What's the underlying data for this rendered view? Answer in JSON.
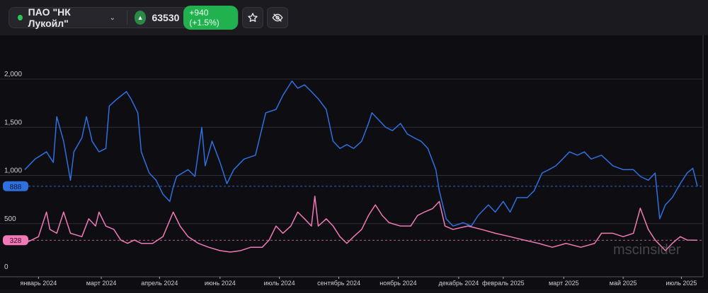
{
  "header": {
    "ticker": "ПАО \"НК Лукойл\"",
    "price": "63530",
    "change": "+940 (+1.5%)",
    "icons": [
      "status-dot",
      "chevron-down-icon",
      "triangle-up-icon",
      "star-icon",
      "eye-off-icon"
    ]
  },
  "watermark": "mscinsider",
  "chart_data": {
    "type": "line",
    "title": "",
    "xlabel": "",
    "ylabel": "",
    "x_unit": "days since mid-December 2023",
    "ylim": [
      0,
      2000
    ],
    "yticks": [
      {
        "v": 0,
        "label": "0"
      },
      {
        "v": 500,
        "label": "500"
      },
      {
        "v": 1000,
        "label": "1,000"
      },
      {
        "v": 1500,
        "label": "1,500"
      },
      {
        "v": 2000,
        "label": "2,000"
      }
    ],
    "xticks": [
      {
        "d": 12,
        "label": "январь 2024"
      },
      {
        "d": 67,
        "label": "март 2024"
      },
      {
        "d": 118,
        "label": "апрель 2024"
      },
      {
        "d": 171,
        "label": "июнь 2024"
      },
      {
        "d": 223,
        "label": "июль 2024"
      },
      {
        "d": 275,
        "label": "сентябрь 2024"
      },
      {
        "d": 327,
        "label": "ноябрь 2024"
      },
      {
        "d": 380,
        "label": "декабрь 2024"
      },
      {
        "d": 419,
        "label": "февраль 2025"
      },
      {
        "d": 472,
        "label": "март 2025"
      },
      {
        "d": 524,
        "label": "май 2025"
      },
      {
        "d": 575,
        "label": "июль 2025"
      }
    ],
    "grid": true,
    "series": [
      {
        "name": "blue",
        "color": "#2f6fe0",
        "last_label": "888",
        "last": 888,
        "points": [
          [
            0,
            1060
          ],
          [
            9,
            1170
          ],
          [
            19,
            1245
          ],
          [
            25,
            1135
          ],
          [
            28,
            1610
          ],
          [
            34,
            1355
          ],
          [
            40,
            950
          ],
          [
            43,
            1245
          ],
          [
            50,
            1390
          ],
          [
            54,
            1610
          ],
          [
            59,
            1355
          ],
          [
            65,
            1245
          ],
          [
            71,
            1280
          ],
          [
            74,
            1720
          ],
          [
            81,
            1795
          ],
          [
            89,
            1870
          ],
          [
            93,
            1795
          ],
          [
            99,
            1650
          ],
          [
            102,
            1245
          ],
          [
            109,
            1025
          ],
          [
            115,
            950
          ],
          [
            121,
            805
          ],
          [
            127,
            730
          ],
          [
            130,
            880
          ],
          [
            133,
            990
          ],
          [
            143,
            1060
          ],
          [
            149,
            990
          ],
          [
            155,
            1500
          ],
          [
            158,
            1100
          ],
          [
            164,
            1355
          ],
          [
            171,
            1135
          ],
          [
            177,
            915
          ],
          [
            183,
            1060
          ],
          [
            192,
            1170
          ],
          [
            202,
            1210
          ],
          [
            211,
            1650
          ],
          [
            220,
            1685
          ],
          [
            226,
            1830
          ],
          [
            234,
            1980
          ],
          [
            239,
            1905
          ],
          [
            245,
            1940
          ],
          [
            251,
            1870
          ],
          [
            257,
            1795
          ],
          [
            264,
            1685
          ],
          [
            270,
            1355
          ],
          [
            276,
            1280
          ],
          [
            282,
            1320
          ],
          [
            288,
            1280
          ],
          [
            295,
            1355
          ],
          [
            301,
            1540
          ],
          [
            304,
            1650
          ],
          [
            310,
            1575
          ],
          [
            316,
            1500
          ],
          [
            322,
            1465
          ],
          [
            329,
            1540
          ],
          [
            335,
            1430
          ],
          [
            341,
            1390
          ],
          [
            347,
            1355
          ],
          [
            353,
            1280
          ],
          [
            360,
            1060
          ],
          [
            363,
            840
          ],
          [
            369,
            550
          ],
          [
            375,
            475
          ],
          [
            384,
            510
          ],
          [
            391,
            475
          ],
          [
            397,
            585
          ],
          [
            406,
            695
          ],
          [
            412,
            620
          ],
          [
            419,
            730
          ],
          [
            425,
            620
          ],
          [
            431,
            770
          ],
          [
            440,
            770
          ],
          [
            446,
            840
          ],
          [
            453,
            1025
          ],
          [
            459,
            1060
          ],
          [
            465,
            1100
          ],
          [
            471,
            1170
          ],
          [
            477,
            1245
          ],
          [
            484,
            1210
          ],
          [
            490,
            1245
          ],
          [
            496,
            1170
          ],
          [
            505,
            1210
          ],
          [
            515,
            1100
          ],
          [
            524,
            1060
          ],
          [
            533,
            1060
          ],
          [
            539,
            990
          ],
          [
            546,
            950
          ],
          [
            552,
            1025
          ],
          [
            556,
            550
          ],
          [
            561,
            695
          ],
          [
            567,
            770
          ],
          [
            574,
            915
          ],
          [
            580,
            1025
          ],
          [
            585,
            1075
          ],
          [
            589,
            888
          ]
        ]
      },
      {
        "name": "pink",
        "color": "#f07ab8",
        "last_label": "328",
        "last": 328,
        "points": [
          [
            0,
            295
          ],
          [
            6,
            330
          ],
          [
            12,
            365
          ],
          [
            19,
            620
          ],
          [
            22,
            440
          ],
          [
            28,
            400
          ],
          [
            34,
            620
          ],
          [
            40,
            400
          ],
          [
            50,
            365
          ],
          [
            56,
            550
          ],
          [
            62,
            475
          ],
          [
            65,
            620
          ],
          [
            71,
            475
          ],
          [
            78,
            440
          ],
          [
            84,
            330
          ],
          [
            90,
            295
          ],
          [
            96,
            330
          ],
          [
            102,
            295
          ],
          [
            112,
            295
          ],
          [
            121,
            365
          ],
          [
            130,
            620
          ],
          [
            136,
            475
          ],
          [
            143,
            365
          ],
          [
            152,
            295
          ],
          [
            161,
            255
          ],
          [
            171,
            220
          ],
          [
            180,
            205
          ],
          [
            189,
            220
          ],
          [
            198,
            255
          ],
          [
            208,
            255
          ],
          [
            214,
            330
          ],
          [
            220,
            475
          ],
          [
            226,
            400
          ],
          [
            233,
            475
          ],
          [
            239,
            620
          ],
          [
            245,
            550
          ],
          [
            251,
            475
          ],
          [
            254,
            785
          ],
          [
            257,
            475
          ],
          [
            264,
            550
          ],
          [
            270,
            475
          ],
          [
            276,
            365
          ],
          [
            282,
            295
          ],
          [
            288,
            365
          ],
          [
            295,
            440
          ],
          [
            301,
            585
          ],
          [
            307,
            695
          ],
          [
            313,
            585
          ],
          [
            319,
            510
          ],
          [
            329,
            475
          ],
          [
            338,
            475
          ],
          [
            344,
            585
          ],
          [
            350,
            620
          ],
          [
            357,
            655
          ],
          [
            363,
            730
          ],
          [
            368,
            475
          ],
          [
            375,
            440
          ],
          [
            388,
            475
          ],
          [
            400,
            440
          ],
          [
            412,
            400
          ],
          [
            425,
            365
          ],
          [
            437,
            330
          ],
          [
            450,
            295
          ],
          [
            462,
            255
          ],
          [
            474,
            295
          ],
          [
            487,
            255
          ],
          [
            499,
            295
          ],
          [
            505,
            400
          ],
          [
            515,
            400
          ],
          [
            524,
            365
          ],
          [
            533,
            400
          ],
          [
            539,
            660
          ],
          [
            546,
            440
          ],
          [
            552,
            330
          ],
          [
            561,
            220
          ],
          [
            567,
            295
          ],
          [
            574,
            365
          ],
          [
            580,
            330
          ],
          [
            589,
            328
          ]
        ]
      }
    ]
  }
}
